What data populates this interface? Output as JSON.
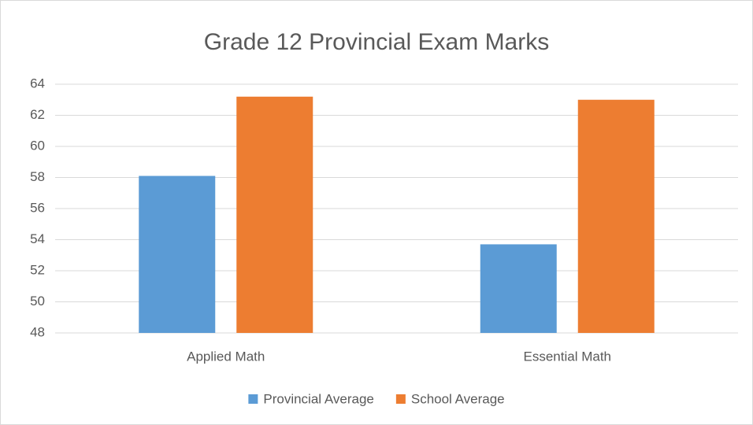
{
  "chart_data": {
    "type": "bar",
    "title": "Grade 12 Provincial Exam Marks",
    "categories": [
      "Applied Math",
      "Essential Math"
    ],
    "series": [
      {
        "name": "Provincial Average",
        "color": "#5b9bd5",
        "values": [
          58.1,
          53.7
        ]
      },
      {
        "name": "School Average",
        "color": "#ed7d31",
        "values": [
          63.2,
          63.0
        ]
      }
    ],
    "ylim": [
      48,
      64
    ],
    "yticks": [
      48,
      50,
      52,
      54,
      56,
      58,
      60,
      62,
      64
    ],
    "grid": true,
    "legend": "bottom"
  }
}
